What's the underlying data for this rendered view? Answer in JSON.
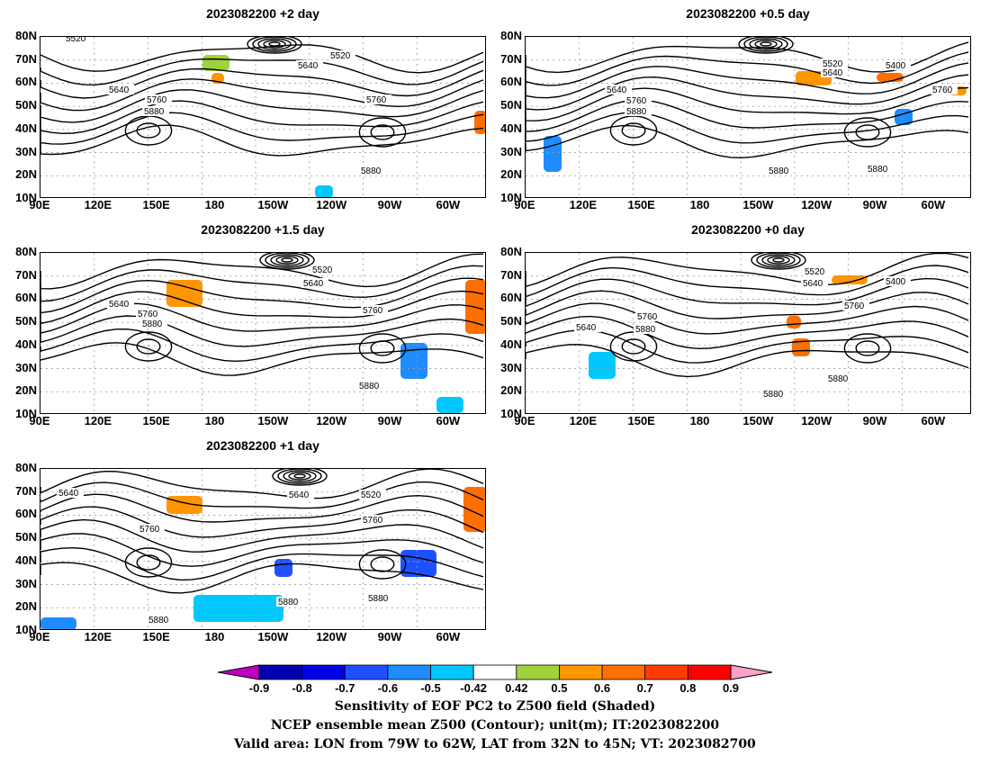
{
  "panels": [
    {
      "title": "2023082200 +2 day",
      "contour_labels": [
        "5520",
        "5520",
        "5640",
        "5640",
        "5760",
        "5760",
        "5880",
        "5880"
      ]
    },
    {
      "title": "2023082200 +0.5 day",
      "contour_labels": [
        "5520",
        "5400",
        "5640",
        "5640",
        "5760",
        "5760",
        "5880",
        "5880",
        "5880"
      ]
    },
    {
      "title": "2023082200 +1.5 day",
      "contour_labels": [
        "5520",
        "5640",
        "5640",
        "5760",
        "5760",
        "5880",
        "5880"
      ]
    },
    {
      "title": "2023082200 +0 day",
      "contour_labels": [
        "5520",
        "5640",
        "5400",
        "5640",
        "5760",
        "5760",
        "5880",
        "5880",
        "5880"
      ]
    },
    {
      "title": "2023082200 +1 day",
      "contour_labels": [
        "5640",
        "5640",
        "5520",
        "5760",
        "5760",
        "5880",
        "5880",
        "5880"
      ]
    }
  ],
  "lat_labels": [
    "80N",
    "70N",
    "60N",
    "50N",
    "40N",
    "30N",
    "20N",
    "10N"
  ],
  "lon_labels": [
    "90E",
    "120E",
    "150E",
    "180",
    "150W",
    "120W",
    "90W",
    "60W"
  ],
  "colorbar": {
    "labels": [
      "-0.9",
      "-0.8",
      "-0.7",
      "-0.6",
      "-0.5",
      "-0.42",
      "0.42",
      "0.5",
      "0.6",
      "0.7",
      "0.8",
      "0.9"
    ],
    "colors": [
      "#c000c0",
      "#0000b0",
      "#0000e6",
      "#1e50ff",
      "#1e8cff",
      "#00c8ff",
      "#ffffff",
      "#a0d23c",
      "#ff9600",
      "#ff6e00",
      "#ff3c00",
      "#ff0000",
      "#ffa0c8"
    ]
  },
  "footer": {
    "line1": "Sensitivity of EOF PC2 to Z500 field (Shaded)",
    "line2": "NCEP ensemble mean Z500 (Contour); unit(m); IT:2023082200",
    "line3": "Valid area: LON from 79W to 62W, LAT from 32N to 45N; VT: 2023082700"
  }
}
